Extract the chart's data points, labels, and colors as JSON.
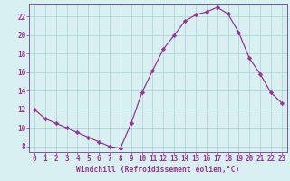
{
  "x": [
    0,
    1,
    2,
    3,
    4,
    5,
    6,
    7,
    8,
    9,
    10,
    11,
    12,
    13,
    14,
    15,
    16,
    17,
    18,
    19,
    20,
    21,
    22,
    23
  ],
  "y": [
    12,
    11,
    10.5,
    10,
    9.5,
    9,
    8.5,
    8,
    7.8,
    10.5,
    13.8,
    16.2,
    18.5,
    20,
    21.5,
    22.2,
    22.5,
    23,
    22.3,
    20.3,
    17.5,
    15.8,
    13.8,
    12.7
  ],
  "line_color": "#993399",
  "marker": "D",
  "marker_size": 2.2,
  "bg_color": "#d8f0f0",
  "grid_color": "#b0d8d8",
  "xlabel": "Windchill (Refroidissement éolien,°C)",
  "ylabel": "",
  "xlim": [
    -0.5,
    23.5
  ],
  "ylim": [
    7.4,
    23.4
  ],
  "yticks": [
    8,
    10,
    12,
    14,
    16,
    18,
    20,
    22
  ],
  "xticks": [
    0,
    1,
    2,
    3,
    4,
    5,
    6,
    7,
    8,
    9,
    10,
    11,
    12,
    13,
    14,
    15,
    16,
    17,
    18,
    19,
    20,
    21,
    22,
    23
  ],
  "tick_color": "#993399",
  "label_color": "#993399",
  "spine_color": "#7755aa",
  "xlabel_fontsize": 5.8,
  "tick_fontsize": 5.5,
  "xlabel_fontweight": "bold"
}
